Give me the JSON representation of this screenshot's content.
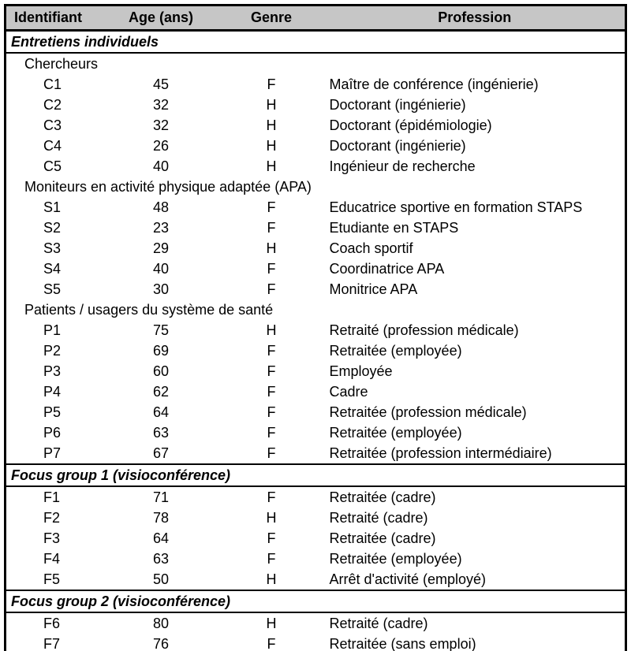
{
  "colors": {
    "header_bg": "#c6c6c6",
    "border": "#000000",
    "background": "#ffffff",
    "text": "#000000"
  },
  "table": {
    "columns": [
      "Identifiant",
      "Age (ans)",
      "Genre",
      "Profession"
    ],
    "sections": [
      {
        "title": "Entretiens individuels",
        "groups": [
          {
            "subtitle": "Chercheurs",
            "rows": [
              [
                "C1",
                "45",
                "F",
                "Maître de conférence (ingénierie)"
              ],
              [
                "C2",
                "32",
                "H",
                "Doctorant (ingénierie)"
              ],
              [
                "C3",
                "32",
                "H",
                "Doctorant (épidémiologie)"
              ],
              [
                "C4",
                "26",
                "H",
                "Doctorant (ingénierie)"
              ],
              [
                "C5",
                "40",
                "H",
                "Ingénieur de recherche"
              ]
            ]
          },
          {
            "subtitle": "Moniteurs en activité physique adaptée (APA)",
            "rows": [
              [
                "S1",
                "48",
                "F",
                "Educatrice sportive en formation STAPS"
              ],
              [
                "S2",
                "23",
                "F",
                "Etudiante en STAPS"
              ],
              [
                "S3",
                "29",
                "H",
                "Coach sportif"
              ],
              [
                "S4",
                "40",
                "F",
                "Coordinatrice APA"
              ],
              [
                "S5",
                "30",
                "F",
                "Monitrice APA"
              ]
            ]
          },
          {
            "subtitle": "Patients / usagers du système de santé",
            "rows": [
              [
                "P1",
                "75",
                "H",
                "Retraité (profession médicale)"
              ],
              [
                "P2",
                "69",
                "F",
                "Retraitée (employée)"
              ],
              [
                "P3",
                "60",
                "F",
                "Employée"
              ],
              [
                "P4",
                "62",
                "F",
                "Cadre"
              ],
              [
                "P5",
                "64",
                "F",
                "Retraitée (profession médicale)"
              ],
              [
                "P6",
                "63",
                "F",
                "Retraitée (employée)"
              ],
              [
                "P7",
                "67",
                "F",
                "Retraitée (profession intermédiaire)"
              ]
            ]
          }
        ]
      },
      {
        "title": "Focus group 1 (visioconférence)",
        "groups": [
          {
            "subtitle": "",
            "rows": [
              [
                "F1",
                "71",
                "F",
                "Retraitée (cadre)"
              ],
              [
                "F2",
                "78",
                "H",
                "Retraité (cadre)"
              ],
              [
                "F3",
                "64",
                "F",
                "Retraitée (cadre)"
              ],
              [
                "F4",
                "63",
                "F",
                "Retraitée (employée)"
              ],
              [
                "F5",
                "50",
                "H",
                "Arrêt d'activité (employé)"
              ]
            ]
          }
        ]
      },
      {
        "title": "Focus group 2 (visioconférence)",
        "groups": [
          {
            "subtitle": "",
            "rows": [
              [
                "F6",
                "80",
                "H",
                "Retraité (cadre)"
              ],
              [
                "F7",
                "76",
                "F",
                "Retraitée (sans emploi)"
              ]
            ]
          }
        ]
      }
    ]
  }
}
